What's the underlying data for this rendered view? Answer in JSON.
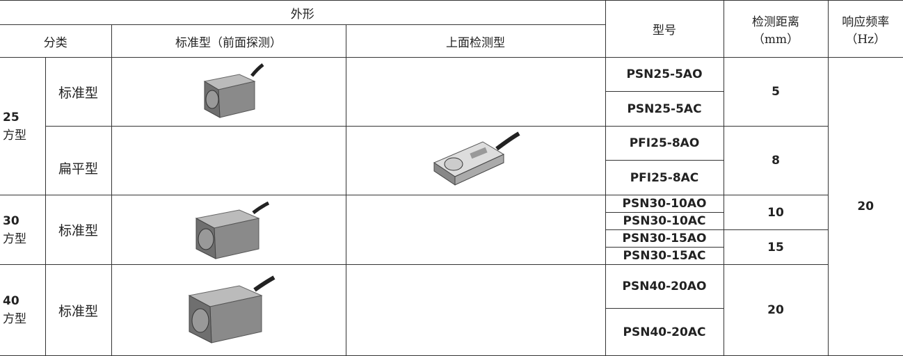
{
  "header": {
    "appearance": "外形",
    "category": "分类",
    "front": "标准型（前面探测）",
    "top": "上面检测型",
    "model": "型号",
    "distance": "检测距离",
    "distance_unit": "（mm）",
    "frequency": "响应频率",
    "frequency_unit": "（Hz）"
  },
  "groups": [
    {
      "size": "25",
      "shape": "方型",
      "types": [
        {
          "name": "标准型",
          "models": [
            "PSN25-5AO",
            "PSN25-5AC"
          ],
          "distance": "5"
        },
        {
          "name": "扁平型",
          "models": [
            "PFI25-8AO",
            "PFI25-8AC"
          ],
          "distance": "8"
        }
      ]
    },
    {
      "size": "30",
      "shape": "方型",
      "types": [
        {
          "name": "标准型",
          "models": [
            "PSN30-10AO",
            "PSN30-10AC",
            "PSN30-15AO",
            "PSN30-15AC"
          ],
          "distances": [
            "10",
            "15"
          ]
        }
      ]
    },
    {
      "size": "40",
      "shape": "方型",
      "types": [
        {
          "name": "标准型",
          "models": [
            "PSN40-20AO",
            "PSN40-20AC"
          ],
          "distance": "20"
        }
      ]
    }
  ],
  "frequency": "20"
}
